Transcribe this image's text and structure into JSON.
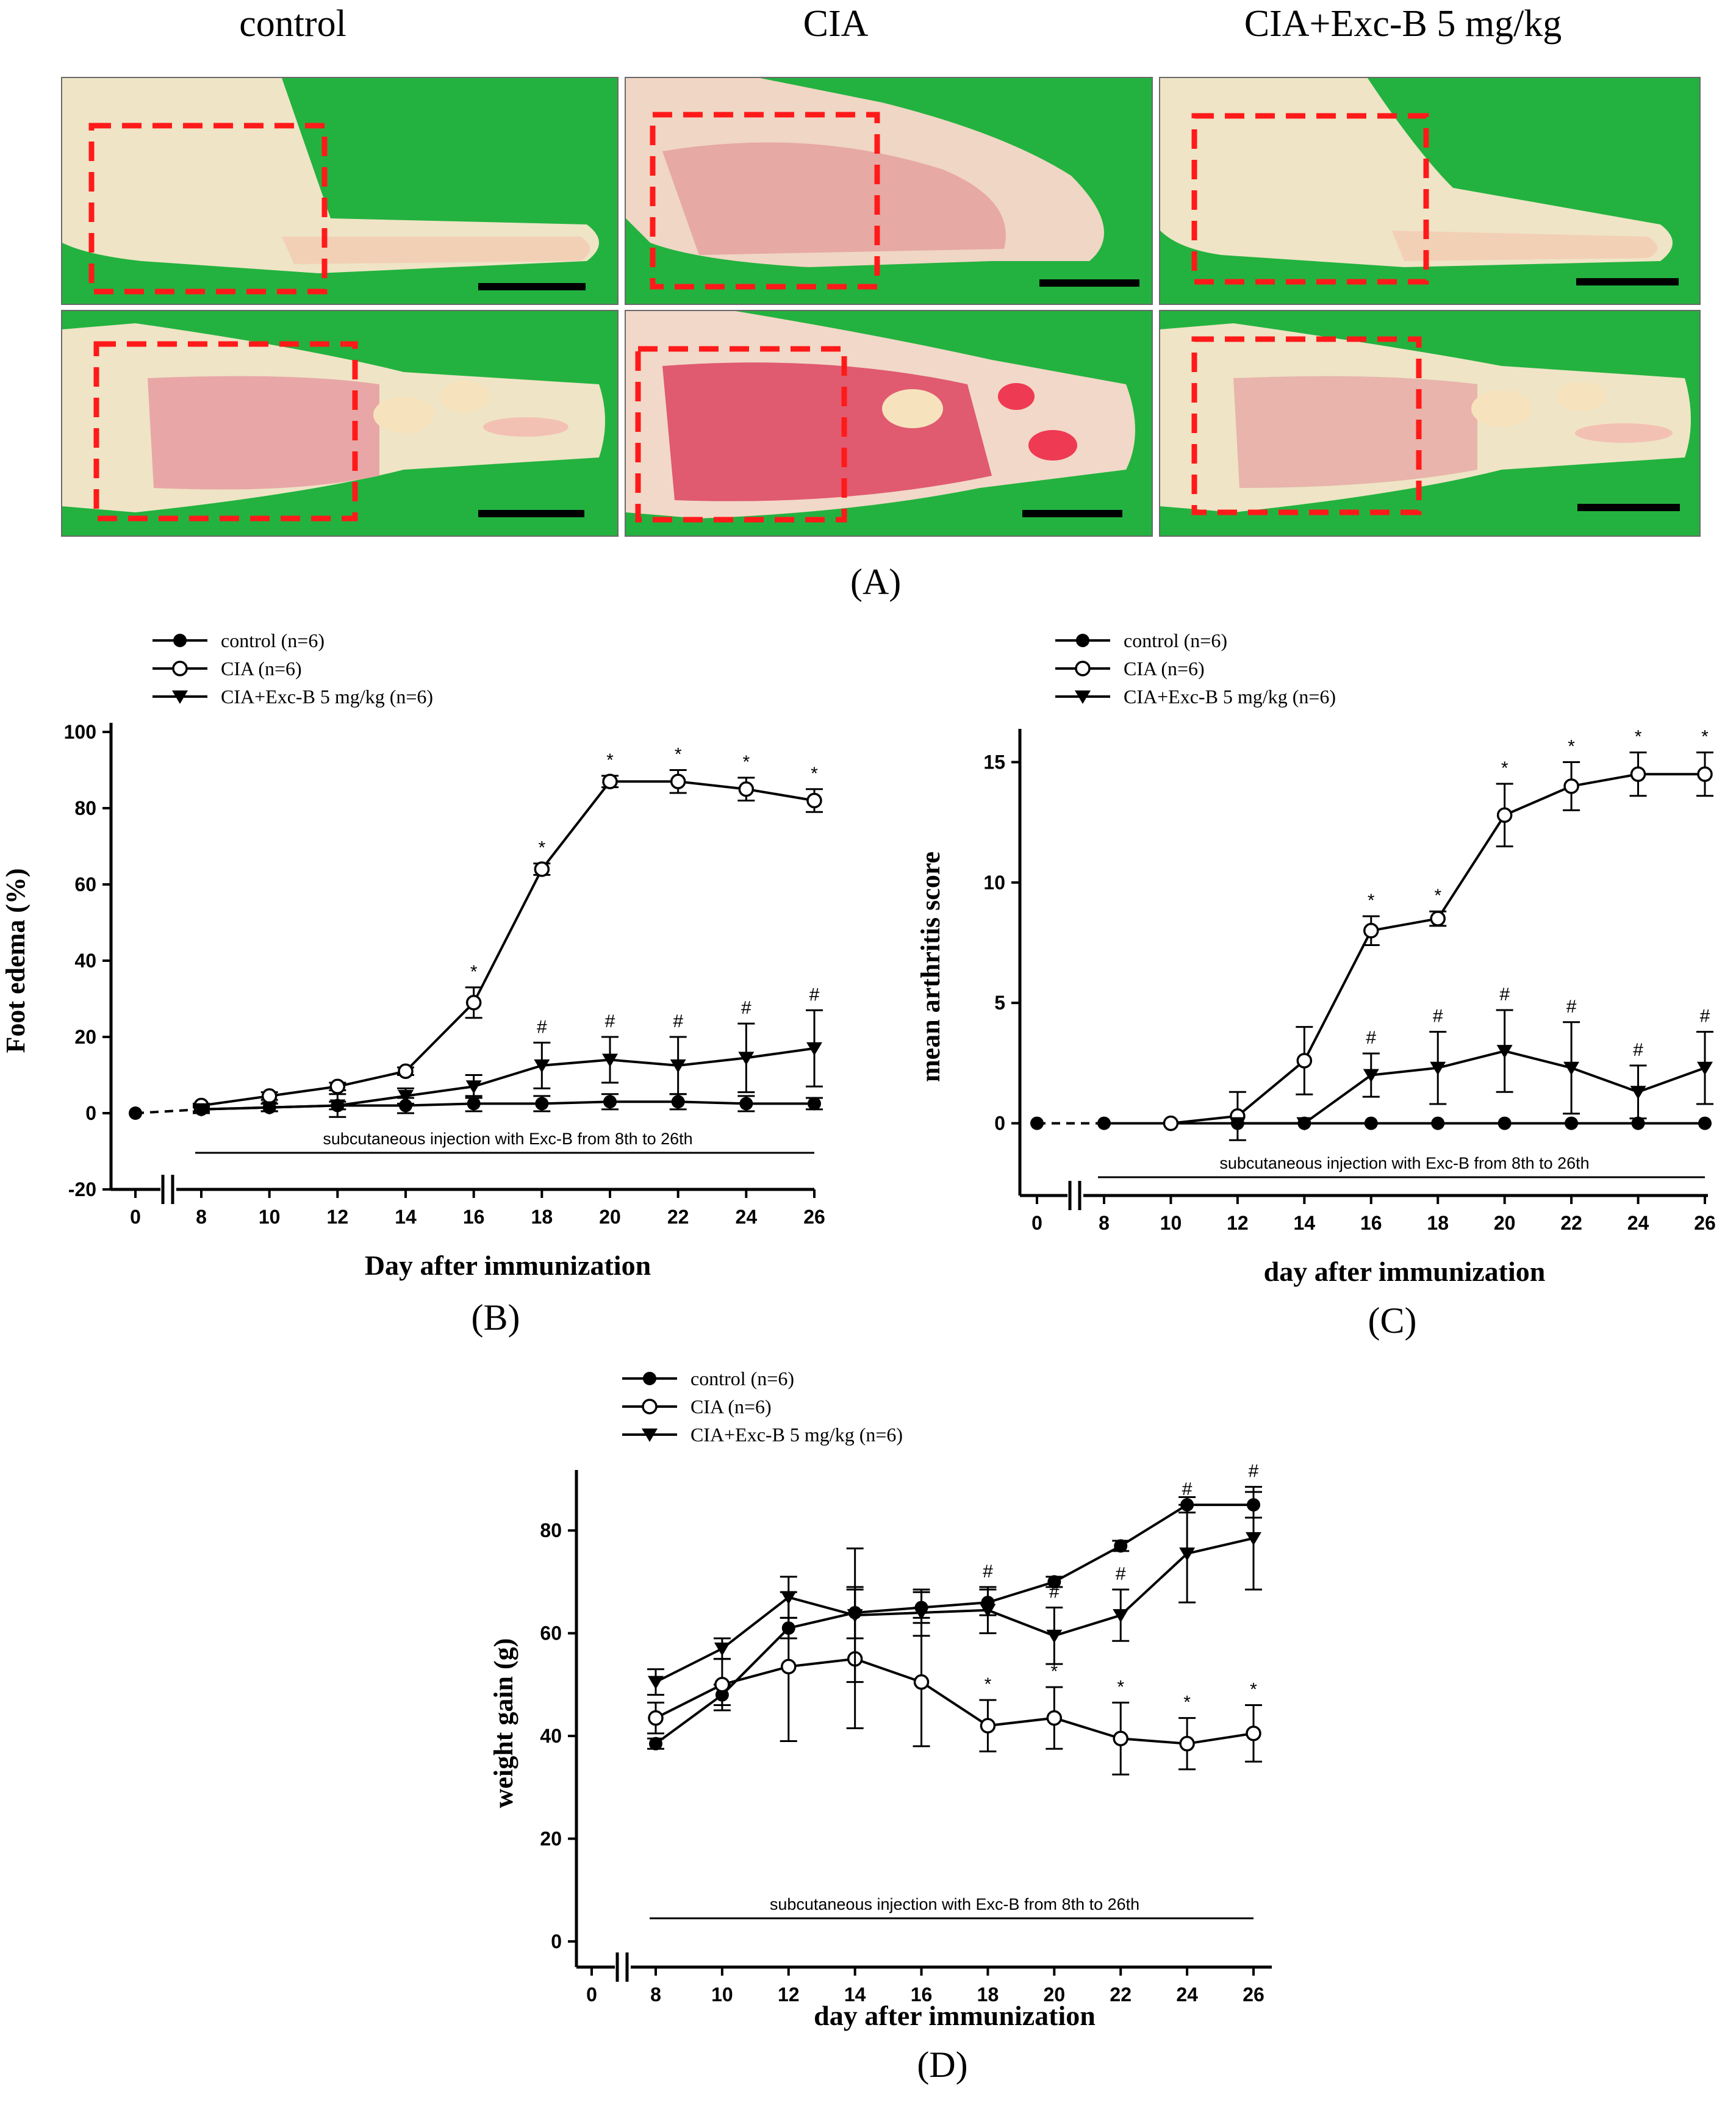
{
  "panel_a": {
    "columns": [
      "control",
      "CIA",
      "CIA+Exc-B 5 mg/kg"
    ],
    "label": "(A)"
  },
  "chart_data": [
    {
      "id": "B",
      "type": "line",
      "panel_label": "(B)",
      "ylabel": "Foot edema (%)",
      "xlabel": "Day after immunization",
      "ylim": [
        -20,
        100
      ],
      "yticks": [
        -20,
        0,
        20,
        40,
        60,
        80,
        100
      ],
      "x_ticks": [
        0,
        8,
        10,
        12,
        14,
        16,
        18,
        20,
        22,
        24,
        26
      ],
      "injection_note": "subcutaneous injection with Exc-B from 8th to 26th",
      "legend": [
        "control (n=6)",
        "CIA (n=6)",
        "CIA+Exc-B 5 mg/kg (n=6)"
      ],
      "series": [
        {
          "name": "control (n=6)",
          "marker": "filled-circle",
          "x": [
            0,
            8,
            10,
            12,
            14,
            16,
            18,
            20,
            22,
            24,
            26
          ],
          "values": [
            0,
            1,
            1.5,
            2,
            2,
            2.5,
            2.5,
            3,
            3,
            2.5,
            2.5
          ],
          "errors": [
            0,
            0.5,
            1,
            1,
            2,
            2,
            2,
            2,
            2,
            2,
            1.5
          ]
        },
        {
          "name": "CIA (n=6)",
          "marker": "open-circle",
          "x": [
            8,
            10,
            12,
            14,
            16,
            18,
            20,
            22,
            24,
            26
          ],
          "values": [
            2,
            4.5,
            7,
            11,
            29,
            64,
            87,
            87,
            85,
            82
          ],
          "errors": [
            0.5,
            1,
            1,
            1,
            4,
            1.5,
            1.5,
            3,
            3,
            3
          ],
          "annotations": [
            "",
            "",
            "",
            "",
            "*",
            "*",
            "*",
            "*",
            "*",
            "*"
          ]
        },
        {
          "name": "CIA+Exc-B 5 mg/kg (n=6)",
          "marker": "filled-triangle-down",
          "x": [
            8,
            10,
            12,
            14,
            16,
            18,
            20,
            22,
            24,
            26
          ],
          "values": [
            1,
            1.5,
            2,
            4.5,
            7,
            12.5,
            14,
            12.5,
            14.5,
            17
          ],
          "errors": [
            1,
            1,
            3,
            2,
            3,
            6,
            6,
            7.5,
            9,
            10
          ],
          "annotations": [
            "",
            "",
            "",
            "",
            "",
            "#",
            "#",
            "#",
            "#",
            "#"
          ]
        }
      ]
    },
    {
      "id": "C",
      "type": "line",
      "panel_label": "(C)",
      "ylabel": "mean arthritis score",
      "xlabel": "day after immunization",
      "ylim": [
        -3,
        16
      ],
      "yticks": [
        0,
        5,
        10,
        15
      ],
      "x_ticks": [
        0,
        8,
        10,
        12,
        14,
        16,
        18,
        20,
        22,
        24,
        26
      ],
      "injection_note": "subcutaneous injection with Exc-B from 8th to 26th",
      "legend": [
        "control (n=6)",
        "CIA (n=6)",
        "CIA+Exc-B 5 mg/kg (n=6)"
      ],
      "series": [
        {
          "name": "control (n=6)",
          "marker": "filled-circle",
          "x": [
            0,
            8,
            10,
            12,
            14,
            16,
            18,
            20,
            22,
            24,
            26
          ],
          "values": [
            0,
            0,
            0,
            0,
            0,
            0,
            0,
            0,
            0,
            0,
            0
          ],
          "errors": [
            0,
            0,
            0,
            0,
            0,
            0,
            0,
            0,
            0,
            0,
            0
          ]
        },
        {
          "name": "CIA (n=6)",
          "marker": "open-circle",
          "x": [
            10,
            12,
            14,
            16,
            18,
            20,
            22,
            24,
            26
          ],
          "values": [
            0,
            0.3,
            2.6,
            8,
            8.5,
            12.8,
            14,
            14.5,
            14.5
          ],
          "errors": [
            0,
            1,
            1.4,
            0.6,
            0.3,
            1.3,
            1,
            0.9,
            0.9
          ],
          "annotations": [
            "",
            "",
            "",
            "*",
            "*",
            "*",
            "*",
            "*",
            "*"
          ]
        },
        {
          "name": "CIA+Exc-B 5 mg/kg (n=6)",
          "marker": "filled-triangle-down",
          "x": [
            12,
            14,
            16,
            18,
            20,
            22,
            24,
            26
          ],
          "values": [
            0,
            0,
            2,
            2.3,
            3,
            2.3,
            1.3,
            2.3
          ],
          "errors": [
            0,
            0,
            0.9,
            1.5,
            1.7,
            1.9,
            1.1,
            1.5
          ],
          "annotations": [
            "",
            "",
            "#",
            "#",
            "#",
            "#",
            "#",
            "#"
          ]
        }
      ]
    },
    {
      "id": "D",
      "type": "line",
      "panel_label": "(D)",
      "ylabel": "weight gain (g)",
      "xlabel": "day after immunization",
      "ylim": [
        -5,
        90
      ],
      "yticks": [
        0,
        20,
        40,
        60,
        80
      ],
      "x_ticks": [
        0,
        8,
        10,
        12,
        14,
        16,
        18,
        20,
        22,
        24,
        26
      ],
      "injection_note": "subcutaneous injection with Exc-B from 8th to 26th",
      "legend": [
        "control (n=6)",
        "CIA (n=6)",
        "CIA+Exc-B 5 mg/kg (n=6)"
      ],
      "series": [
        {
          "name": "control (n=6)",
          "marker": "filled-circle",
          "x": [
            8,
            10,
            12,
            14,
            16,
            18,
            20,
            22,
            24,
            26
          ],
          "values": [
            38.5,
            48,
            61,
            64,
            65,
            66,
            70,
            77,
            85,
            85
          ],
          "errors": [
            1,
            2,
            2,
            5,
            3,
            2.5,
            1,
            1,
            1.5,
            2.5
          ]
        },
        {
          "name": "CIA (n=6)",
          "marker": "open-circle",
          "x": [
            8,
            10,
            12,
            14,
            16,
            18,
            20,
            22,
            24,
            26
          ],
          "values": [
            43.5,
            50,
            53.5,
            55,
            50.5,
            42,
            43.5,
            39.5,
            38.5,
            40.5
          ],
          "errors": [
            3,
            5,
            14.5,
            13.5,
            12.5,
            5,
            6,
            7,
            5,
            5.5
          ],
          "annotations": [
            "",
            "",
            "",
            "",
            "",
            "*",
            "*",
            "*",
            "*",
            "*"
          ]
        },
        {
          "name": "CIA+Exc-B 5 mg/kg (n=6)",
          "marker": "filled-triangle-down",
          "x": [
            8,
            10,
            12,
            14,
            16,
            18,
            20,
            22,
            24,
            26
          ],
          "values": [
            50.5,
            57,
            67,
            63.5,
            64,
            64.5,
            59.5,
            63.5,
            75.5,
            78.5
          ],
          "errors": [
            2.5,
            2,
            4,
            13,
            4.5,
            4.5,
            5.5,
            5,
            9.5,
            10
          ],
          "annotations": [
            "",
            "",
            "",
            "",
            "",
            "#",
            "#",
            "#",
            "#",
            "#"
          ]
        }
      ]
    }
  ]
}
